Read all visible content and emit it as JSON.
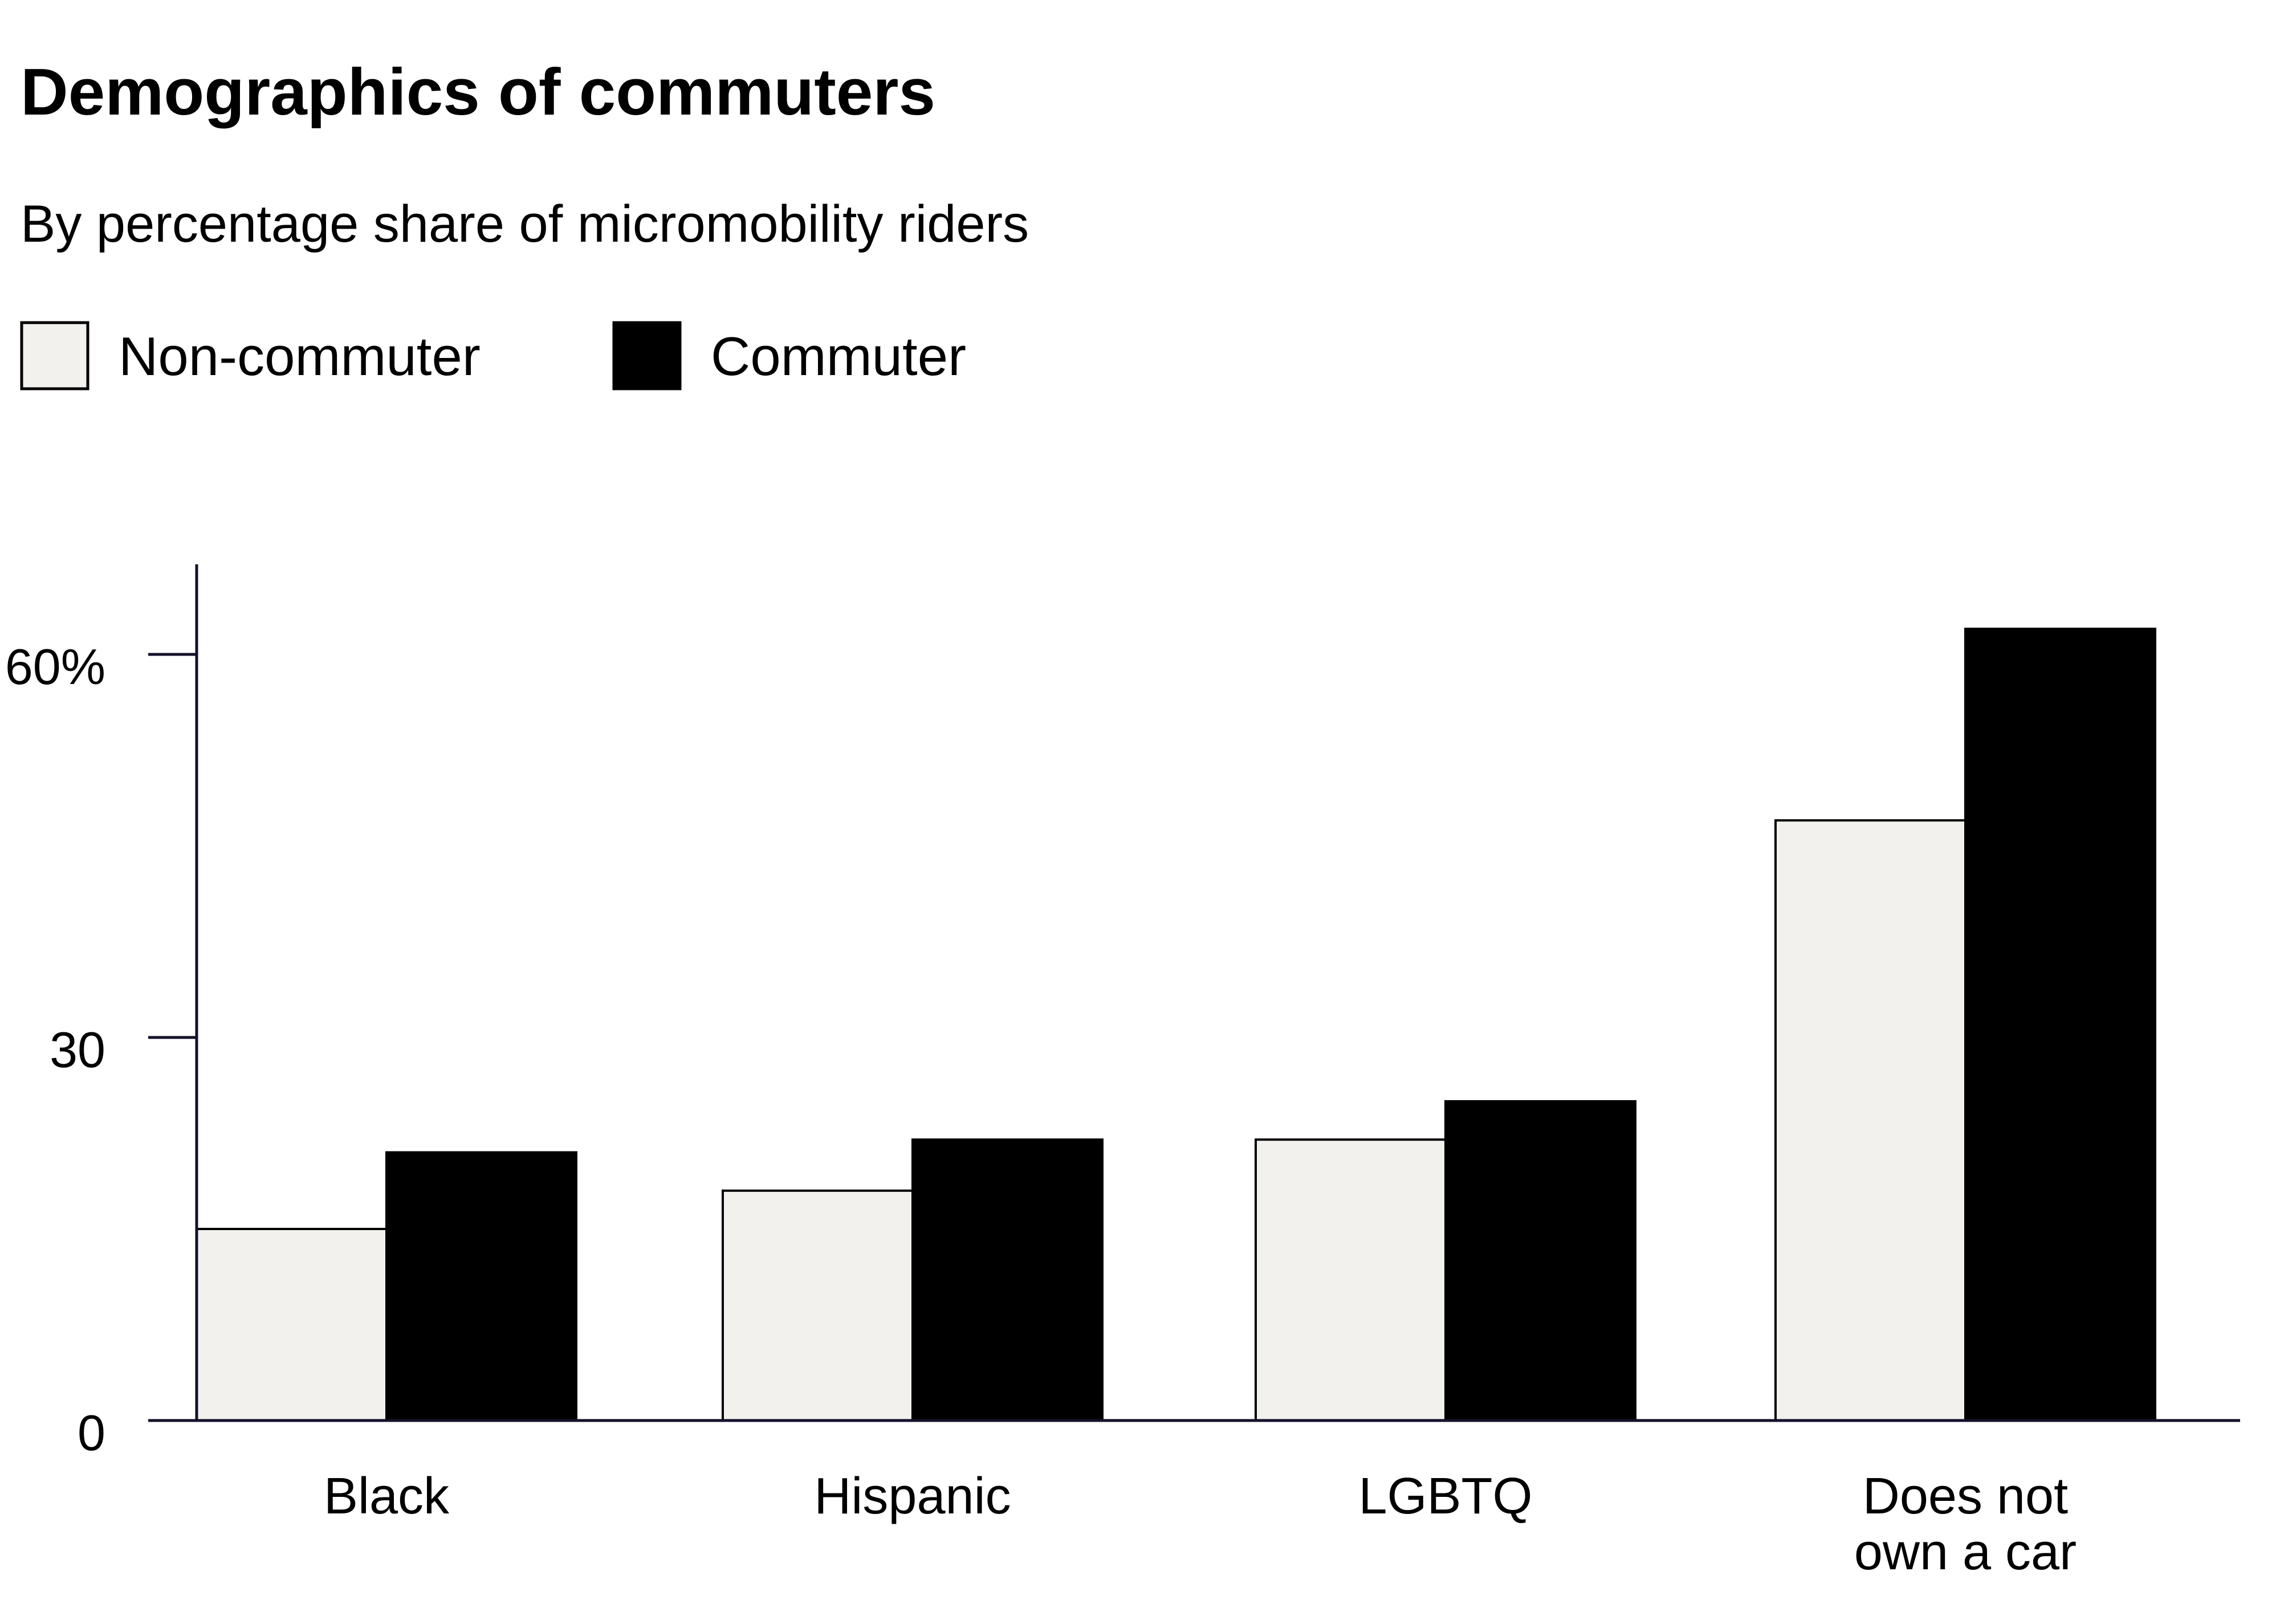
{
  "title": "Demographics of commuters",
  "subtitle": "By percentage share of micromobility riders",
  "colors": {
    "non_commuter_fill": "#f2f1ed",
    "commuter_fill": "#000000",
    "outline": "#000000",
    "axis": "#13112a"
  },
  "chart_data": {
    "type": "bar",
    "title": "Demographics of commuters",
    "subtitle": "By percentage share of micromobility riders",
    "categories": [
      [
        "Black"
      ],
      [
        "Hispanic"
      ],
      [
        "LGBTQ"
      ],
      [
        "Does not",
        "own a car"
      ]
    ],
    "series": [
      {
        "name": "Non-commuter",
        "values": [
          15,
          18,
          22,
          47
        ]
      },
      {
        "name": "Commuter",
        "values": [
          21,
          22,
          25,
          62
        ]
      }
    ],
    "xlabel": "",
    "ylabel": "",
    "ylim": [
      0,
      67
    ],
    "yticks": [
      {
        "value": 0,
        "label": "0"
      },
      {
        "value": 30,
        "label": "30"
      },
      {
        "value": 60,
        "label": "60%"
      }
    ],
    "grid": false,
    "legend": "top-left"
  }
}
